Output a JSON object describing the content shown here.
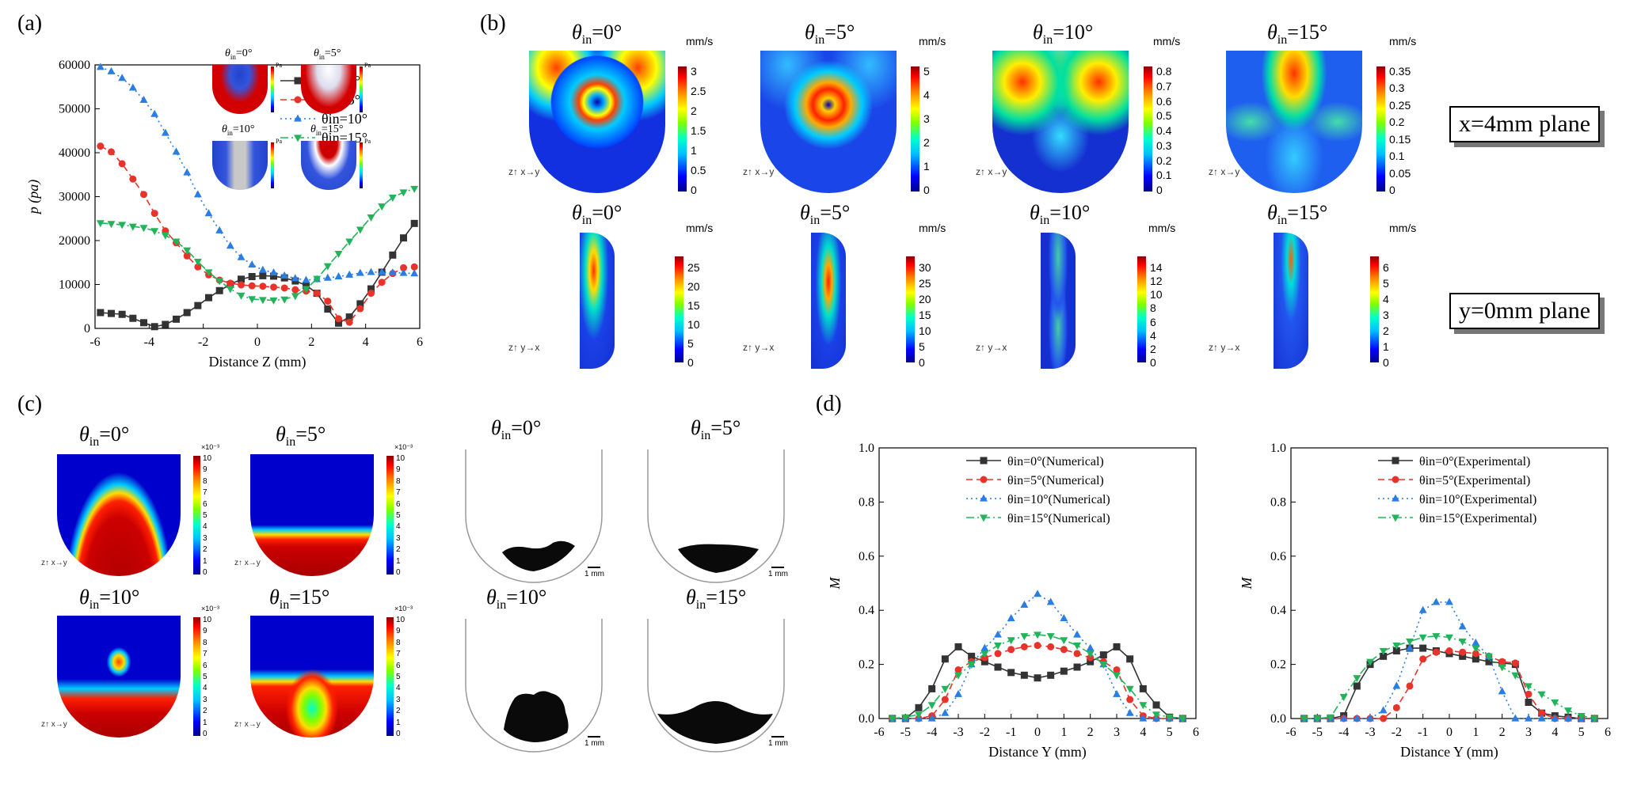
{
  "panels": {
    "a": "(a)",
    "b": "(b)",
    "c": "(c)",
    "d": "(d)"
  },
  "units": {
    "mms": "mm/s",
    "pa": "Pa",
    "scale": "1 mm"
  },
  "symbols": {
    "theta": "θ",
    "sub": "in",
    "deg": "°"
  },
  "angles": [
    "=0",
    "=5",
    "=10",
    "=15"
  ],
  "planes": {
    "x4": "x=4mm plane",
    "y0": "y=0mm plane"
  },
  "mini_axes": {
    "zy": "z↑ x→y",
    "zx": "z↑ y→x"
  },
  "colorbars": {
    "b_top": [
      [
        "3",
        "2.5",
        "2",
        "1.5",
        "1",
        "0.5",
        "0"
      ],
      [
        "5",
        "4",
        "3",
        "2",
        "1",
        "0"
      ],
      [
        "0.8",
        "0.7",
        "0.6",
        "0.5",
        "0.4",
        "0.3",
        "0.2",
        "0.1",
        "0"
      ],
      [
        "0.35",
        "0.3",
        "0.25",
        "0.2",
        "0.15",
        "0.1",
        "0.05",
        "0"
      ]
    ],
    "b_bot": [
      [
        "25",
        "20",
        "15",
        "10",
        "5",
        "0"
      ],
      [
        "30",
        "25",
        "20",
        "15",
        "10",
        "5",
        "0"
      ],
      [
        "14",
        "12",
        "10",
        "8",
        "6",
        "4",
        "2",
        "0"
      ],
      [
        "6",
        "5",
        "4",
        "3",
        "2",
        "1",
        "0"
      ]
    ],
    "c": [
      "10",
      "9",
      "8",
      "7",
      "6",
      "5",
      "4",
      "3",
      "2",
      "1",
      "0"
    ],
    "c_exp": "×10⁻³"
  },
  "chart_data": [
    {
      "id": "a",
      "type": "line",
      "xlabel": "Distance Z (mm)",
      "ylabel": "p (pa)",
      "xlim": [
        -6,
        6
      ],
      "ylim": [
        0,
        60000
      ],
      "xticks": [
        -6,
        -4,
        -2,
        0,
        2,
        4,
        6
      ],
      "yticks": [
        0,
        10000,
        20000,
        30000,
        40000,
        50000,
        60000
      ],
      "x": [
        -5.8,
        -5.4,
        -5.0,
        -4.6,
        -4.2,
        -3.8,
        -3.4,
        -3.0,
        -2.6,
        -2.2,
        -1.8,
        -1.4,
        -1.0,
        -0.6,
        -0.2,
        0.2,
        0.6,
        1.0,
        1.4,
        1.8,
        2.2,
        2.6,
        3.0,
        3.4,
        3.8,
        4.2,
        4.6,
        5.0,
        5.4,
        5.8
      ],
      "series": [
        {
          "name": "θin=0°",
          "color": "#333333",
          "marker": "square",
          "dash": "",
          "values": [
            3600,
            3400,
            3200,
            2300,
            1300,
            400,
            900,
            2100,
            3600,
            5200,
            7000,
            8600,
            10000,
            11200,
            11800,
            12000,
            11900,
            11500,
            10800,
            9800,
            8000,
            4400,
            1200,
            2600,
            5600,
            9000,
            12800,
            16700,
            20600,
            23900
          ]
        },
        {
          "name": "θin=5°",
          "color": "#e8332a",
          "marker": "circle",
          "dash": "8,5",
          "values": [
            41500,
            40200,
            37500,
            34000,
            30500,
            26200,
            22200,
            19500,
            16500,
            14000,
            12200,
            11000,
            10300,
            9900,
            9700,
            9600,
            9400,
            9200,
            8800,
            8500,
            8000,
            6200,
            2200,
            1400,
            4500,
            8000,
            10500,
            12500,
            13800,
            14000
          ]
        },
        {
          "name": "θin=10°",
          "color": "#2a7de1",
          "marker": "triangle",
          "dash": "2,4",
          "values": [
            59500,
            58500,
            57000,
            54800,
            52000,
            48800,
            44500,
            40200,
            35500,
            30500,
            26200,
            22300,
            18800,
            16200,
            14500,
            13300,
            12700,
            12000,
            11400,
            11000,
            11200,
            11500,
            11800,
            12200,
            12600,
            12800,
            12800,
            12700,
            12600,
            12500
          ]
        },
        {
          "name": "θin=15°",
          "color": "#22b45a",
          "marker": "triangledown",
          "dash": "10,4,2,4",
          "values": [
            24000,
            23800,
            23600,
            23200,
            22900,
            22200,
            21200,
            19800,
            17800,
            15200,
            12800,
            10800,
            9000,
            7500,
            6700,
            6500,
            6400,
            6600,
            7400,
            9000,
            11300,
            14200,
            17000,
            19800,
            22500,
            25300,
            27800,
            29800,
            31000,
            31800
          ]
        }
      ]
    },
    {
      "id": "d1",
      "type": "line",
      "xlabel": "Distance Y (mm)",
      "ylabel": "M",
      "xlim": [
        -6,
        6
      ],
      "ylim": [
        0,
        1.0
      ],
      "xticks": [
        -6,
        -5,
        -4,
        -3,
        -2,
        -1,
        0,
        1,
        2,
        3,
        4,
        5,
        6
      ],
      "yticks": [
        0.0,
        0.2,
        0.4,
        0.6,
        0.8,
        1.0
      ],
      "x": [
        -5.5,
        -5.0,
        -4.5,
        -4.0,
        -3.5,
        -3.0,
        -2.5,
        -2.0,
        -1.5,
        -1.0,
        -0.5,
        0.0,
        0.5,
        1.0,
        1.5,
        2.0,
        2.5,
        3.0,
        3.5,
        4.0,
        4.5,
        5.0,
        5.5
      ],
      "series": [
        {
          "name": "θin=0°(Numerical)",
          "color": "#333333",
          "marker": "square",
          "dash": "",
          "values": [
            0.0,
            0.0,
            0.04,
            0.11,
            0.22,
            0.265,
            0.23,
            0.21,
            0.19,
            0.17,
            0.16,
            0.15,
            0.16,
            0.175,
            0.19,
            0.21,
            0.235,
            0.265,
            0.22,
            0.11,
            0.05,
            0.005,
            0.0
          ]
        },
        {
          "name": "θin=5°(Numerical)",
          "color": "#e8332a",
          "marker": "circle",
          "dash": "8,5",
          "values": [
            0.0,
            0.0,
            0.0,
            0.01,
            0.07,
            0.18,
            0.21,
            0.225,
            0.24,
            0.255,
            0.265,
            0.27,
            0.265,
            0.255,
            0.24,
            0.225,
            0.21,
            0.18,
            0.07,
            0.01,
            0.0,
            0.0,
            0.0
          ]
        },
        {
          "name": "θin=10°(Numerical)",
          "color": "#2a7de1",
          "marker": "triangle",
          "dash": "2,4",
          "values": [
            0.0,
            0.0,
            0.0,
            0.0,
            0.02,
            0.09,
            0.2,
            0.26,
            0.31,
            0.37,
            0.42,
            0.46,
            0.43,
            0.37,
            0.31,
            0.26,
            0.2,
            0.09,
            0.02,
            0.0,
            0.0,
            0.0,
            0.0
          ]
        },
        {
          "name": "θin=15°(Numerical)",
          "color": "#22b45a",
          "marker": "triangledown",
          "dash": "10,4,2,4",
          "values": [
            0.0,
            0.005,
            0.015,
            0.05,
            0.11,
            0.16,
            0.2,
            0.24,
            0.27,
            0.29,
            0.305,
            0.31,
            0.305,
            0.29,
            0.27,
            0.24,
            0.2,
            0.16,
            0.11,
            0.05,
            0.015,
            0.005,
            0.0
          ]
        }
      ]
    },
    {
      "id": "d2",
      "type": "line",
      "xlabel": "Distance Y (mm)",
      "ylabel": "M",
      "xlim": [
        -6,
        6
      ],
      "ylim": [
        0,
        1.0
      ],
      "xticks": [
        -6,
        -5,
        -4,
        -3,
        -2,
        -1,
        0,
        1,
        2,
        3,
        4,
        5,
        6
      ],
      "yticks": [
        0.0,
        0.2,
        0.4,
        0.6,
        0.8,
        1.0
      ],
      "x": [
        -5.5,
        -5.0,
        -4.5,
        -4.0,
        -3.5,
        -3.0,
        -2.5,
        -2.0,
        -1.5,
        -1.0,
        -0.5,
        0.0,
        0.5,
        1.0,
        1.5,
        2.0,
        2.5,
        3.0,
        3.5,
        4.0,
        4.5,
        5.0,
        5.5
      ],
      "series": [
        {
          "name": "θin=0°(Experimental)",
          "color": "#333333",
          "marker": "square",
          "dash": "",
          "values": [
            0.0,
            0.0,
            0.0,
            0.01,
            0.12,
            0.2,
            0.23,
            0.25,
            0.26,
            0.26,
            0.25,
            0.24,
            0.23,
            0.22,
            0.21,
            0.205,
            0.2,
            0.06,
            0.02,
            0.01,
            0.005,
            0.0,
            0.0
          ]
        },
        {
          "name": "θin=5°(Experimental)",
          "color": "#e8332a",
          "marker": "circle",
          "dash": "8,5",
          "values": [
            0.0,
            0.0,
            0.0,
            0.0,
            0.0,
            0.0,
            0.0,
            0.04,
            0.12,
            0.22,
            0.245,
            0.25,
            0.245,
            0.24,
            0.23,
            0.21,
            0.205,
            0.09,
            0.02,
            0.0,
            0.0,
            0.0,
            0.0
          ]
        },
        {
          "name": "θin=10°(Experimental)",
          "color": "#2a7de1",
          "marker": "triangle",
          "dash": "2,4",
          "values": [
            0.0,
            0.0,
            0.0,
            0.0,
            0.0,
            0.0,
            0.03,
            0.12,
            0.26,
            0.4,
            0.43,
            0.43,
            0.34,
            0.28,
            0.23,
            0.1,
            0.0,
            0.0,
            0.0,
            0.0,
            0.0,
            0.0,
            0.0
          ]
        },
        {
          "name": "θin=15°(Experimental)",
          "color": "#22b45a",
          "marker": "triangledown",
          "dash": "10,4,2,4",
          "values": [
            0.0,
            0.0,
            0.005,
            0.08,
            0.15,
            0.21,
            0.25,
            0.27,
            0.285,
            0.3,
            0.305,
            0.3,
            0.285,
            0.26,
            0.23,
            0.19,
            0.16,
            0.12,
            0.09,
            0.06,
            0.03,
            0.01,
            0.0
          ]
        }
      ]
    }
  ]
}
